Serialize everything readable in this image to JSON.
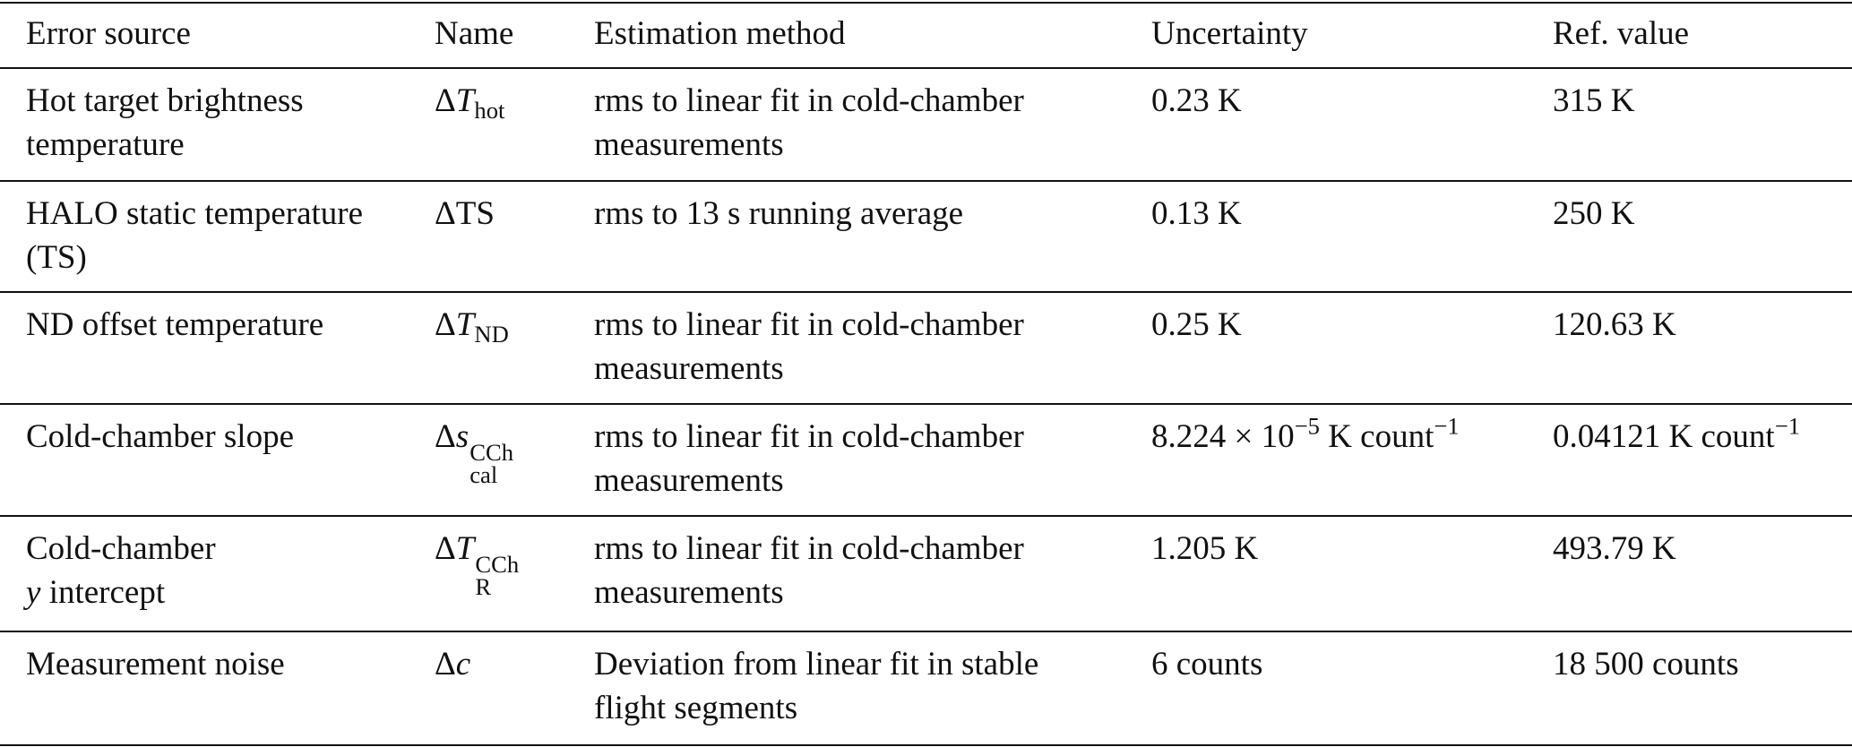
{
  "table": {
    "header": [
      "Error source",
      "Name",
      "Estimation method",
      "Uncertainty",
      "Ref. value"
    ],
    "rows": [
      [
        [
          "Hot target brightness",
          "temperature"
        ],
        [
          [
            "Δ",
            {
              "text": "T",
              "style": "italic"
            },
            {
              "text": "hot",
              "style": "sub"
            }
          ]
        ],
        [
          "rms to linear fit in cold-chamber",
          "measurements"
        ],
        [
          "0.23 K"
        ],
        [
          "315 K"
        ]
      ],
      [
        [
          "HALO static temperature",
          "(TS)"
        ],
        [
          "ΔTS"
        ],
        [
          "rms to 13 s running average"
        ],
        [
          "0.13 K"
        ],
        [
          "250 K"
        ]
      ],
      [
        [
          "ND offset temperature"
        ],
        [
          [
            "Δ",
            {
              "text": "T",
              "style": "italic"
            },
            {
              "text": "ND",
              "style": "sub"
            }
          ]
        ],
        [
          "rms to linear fit in cold-chamber",
          "measurements"
        ],
        [
          "0.25 K"
        ],
        [
          "120.63 K"
        ]
      ],
      [
        [
          "Cold-chamber slope"
        ],
        [
          [
            "Δ",
            {
              "text": "s",
              "style": "italic"
            },
            {
              "sup": "CCh",
              "sub": "cal"
            }
          ]
        ],
        [
          "rms to linear fit in cold-chamber",
          "measurements"
        ],
        [
          [
            "8.224 × 10",
            {
              "text": "−5",
              "style": "sup"
            },
            " K count",
            {
              "text": "−1",
              "style": "sup"
            }
          ]
        ],
        [
          [
            "0.04121 K count",
            {
              "text": "−1",
              "style": "sup"
            }
          ]
        ]
      ],
      [
        [
          "Cold-chamber",
          [
            {
              "text": "y",
              "style": "italic"
            },
            " intercept"
          ]
        ],
        [
          [
            "Δ",
            {
              "text": "T",
              "style": "italic"
            },
            {
              "sup": "CCh",
              "sub": "R"
            }
          ]
        ],
        [
          "rms to linear fit in cold-chamber",
          "measurements"
        ],
        [
          "1.205 K"
        ],
        [
          "493.79 K"
        ]
      ],
      [
        [
          "Measurement noise"
        ],
        [
          [
            "Δ",
            {
              "text": "c",
              "style": "italic"
            }
          ]
        ],
        [
          "Deviation from linear fit in stable",
          "flight segments"
        ],
        [
          "6 counts"
        ],
        [
          "18 500 counts"
        ]
      ]
    ]
  }
}
